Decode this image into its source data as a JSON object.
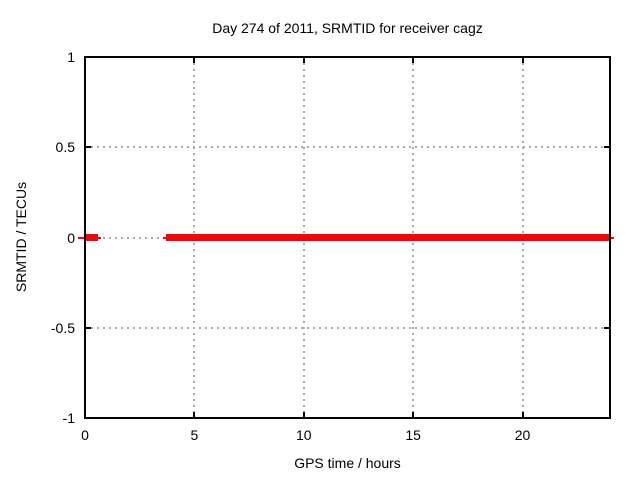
{
  "chart_data": {
    "type": "line",
    "title": "Day 274 of 2011, SRMTID for receiver cagz",
    "xlabel": "GPS time / hours",
    "ylabel": "SRMTID / TECUs",
    "xlim": [
      0,
      24
    ],
    "ylim": [
      -1,
      1
    ],
    "xticks": [
      0,
      5,
      10,
      15,
      20
    ],
    "xtick_labels": [
      "0",
      "5",
      "10",
      "15",
      "20"
    ],
    "yticks": [
      1,
      0.5,
      0,
      -0.5,
      -1
    ],
    "ytick_labels": [
      "1",
      "0.5",
      "0",
      "-0.5",
      "-1"
    ],
    "xgrid": [
      5,
      10,
      15,
      20
    ],
    "ygrid": [
      0.5,
      0,
      -0.5
    ],
    "grid": true,
    "legend_position": "none",
    "series": [
      {
        "name": "SRMTID",
        "color": "#ff0000",
        "segments": [
          {
            "x_start": 0,
            "x_end": 0.6,
            "y": 0
          },
          {
            "x_start": 3.7,
            "x_end": 24,
            "y": 0
          }
        ]
      }
    ],
    "colors": {
      "series": "#ff0000",
      "grid": "#ababab",
      "border": "#000000",
      "text": "#000000",
      "background": "#ffffff"
    }
  }
}
